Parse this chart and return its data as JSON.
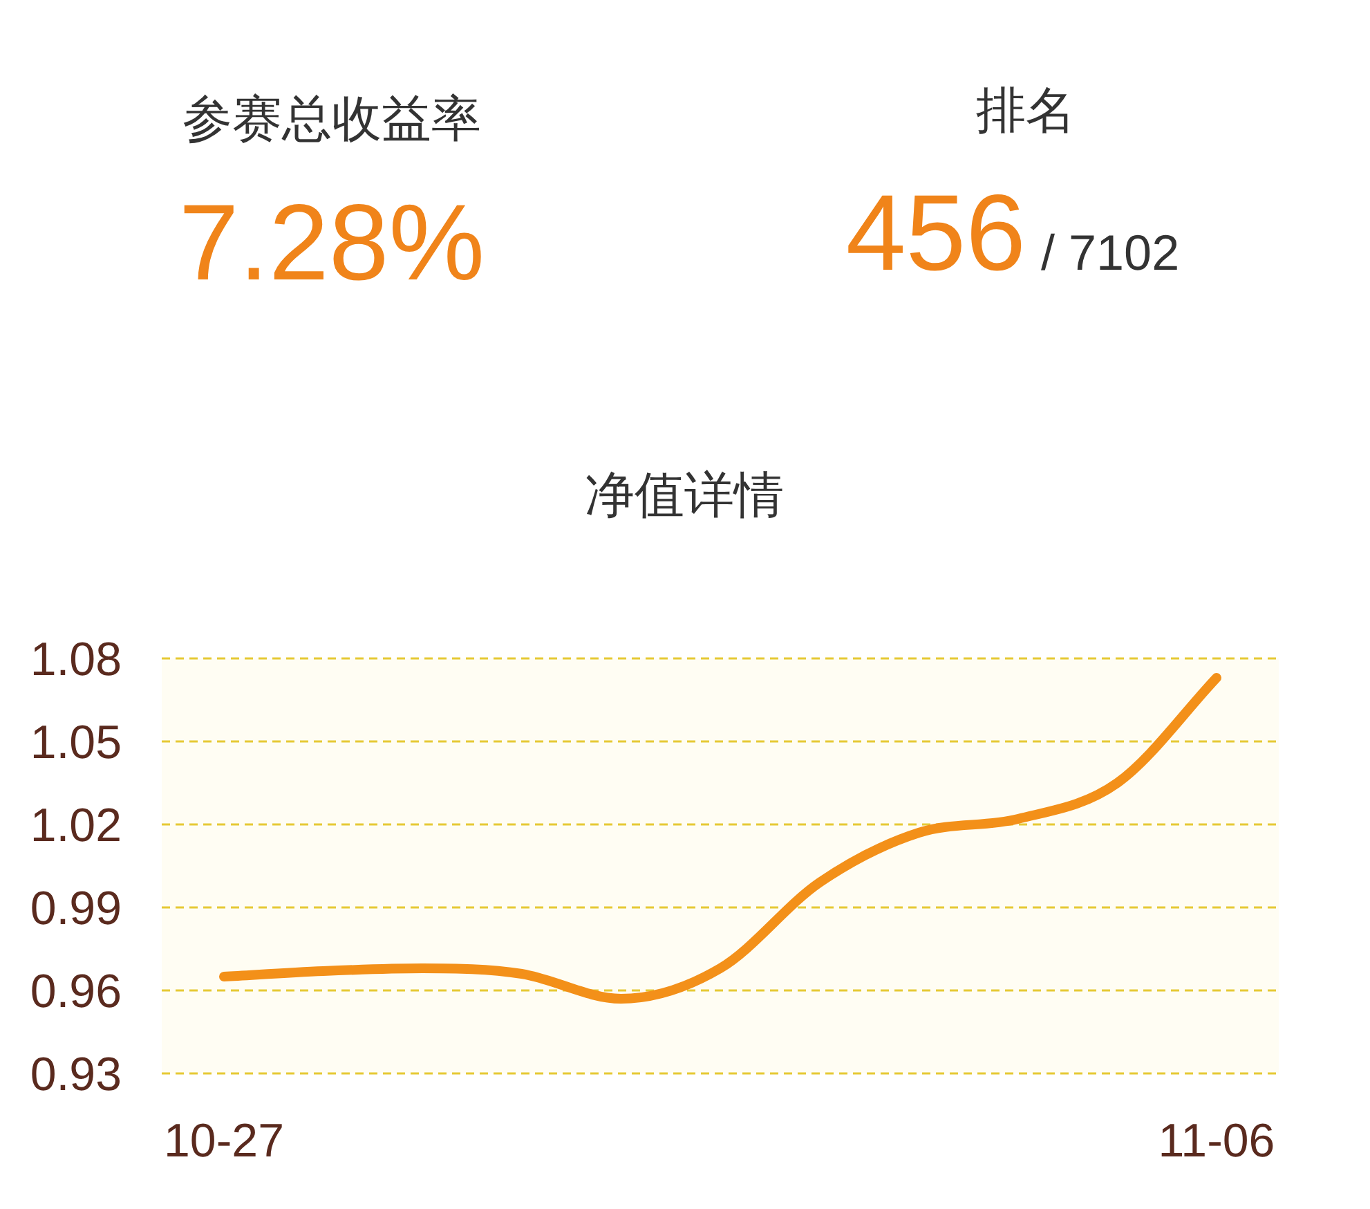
{
  "chart_data": [
    {
      "type": "other",
      "annotations": [
        "参赛总收益率",
        "7.28%",
        "排名",
        "456",
        "/ 7102"
      ]
    },
    {
      "type": "line",
      "title": "净值详情",
      "categories": [
        "10-27",
        null,
        null,
        null,
        null,
        null,
        null,
        null,
        null,
        null,
        "11-06"
      ],
      "series": [
        {
          "color": "#f39019",
          "values": [
            0.965,
            0.967,
            0.968,
            0.966,
            0.957,
            0.968,
            0.999,
            1.017,
            1.022,
            1.035,
            1.073
          ]
        }
      ],
      "ylim": [
        0.93,
        1.08
      ],
      "yticks": [
        {
          "value": 0.93,
          "label": "0.93"
        },
        {
          "value": 0.96,
          "label": "0.96"
        },
        {
          "value": 0.99,
          "label": "0.99"
        },
        {
          "value": 1.02,
          "label": "1.02"
        },
        {
          "value": 1.05,
          "label": "1.05"
        },
        {
          "value": 1.08,
          "label": "1.08"
        }
      ],
      "grid": "y",
      "line_style": "solid"
    }
  ]
}
